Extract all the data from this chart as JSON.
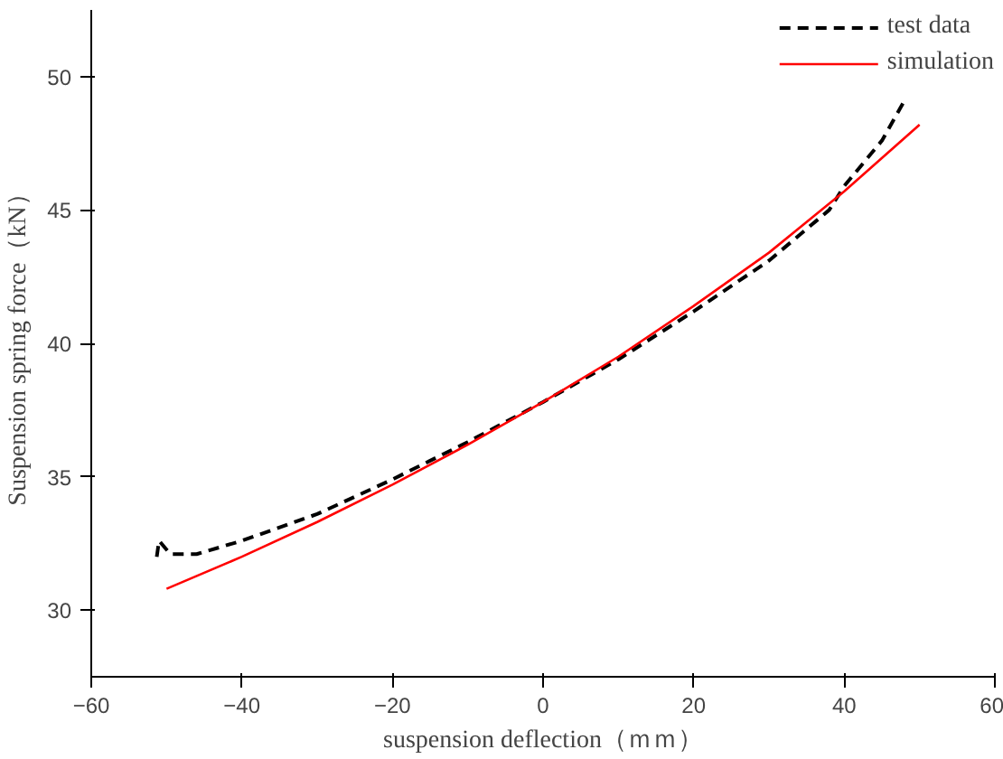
{
  "chart_data": {
    "type": "line",
    "xlabel": "suspension deflection（ｍｍ）",
    "ylabel": "Suspension spring force（kN）",
    "xlim": [
      -60,
      60
    ],
    "xticks": [
      -60,
      -40,
      -20,
      0,
      20,
      40,
      60
    ],
    "ylim": [
      27.5,
      52.5
    ],
    "yticks": [
      30,
      35,
      40,
      45,
      50
    ],
    "grid": false,
    "legend": "top right",
    "series": [
      {
        "name": "test data",
        "color": "#000000",
        "line_style": "dashed",
        "x": [
          -51.3,
          -51.0,
          -49.5,
          -46,
          -40,
          -30,
          -20,
          -10,
          0,
          10,
          20,
          30,
          38,
          40,
          45,
          47.8
        ],
        "values": [
          32.0,
          32.6,
          32.1,
          32.1,
          32.6,
          33.6,
          34.9,
          36.3,
          37.8,
          39.4,
          41.2,
          43.1,
          45.0,
          45.9,
          47.6,
          49.0
        ]
      },
      {
        "name": "simulation",
        "color": "#ff0000",
        "line_style": "solid",
        "x": [
          -50,
          -40,
          -30,
          -20,
          -10,
          0,
          10,
          20,
          30,
          40,
          50
        ],
        "values": [
          30.8,
          32.0,
          33.3,
          34.7,
          36.2,
          37.8,
          39.5,
          41.4,
          43.4,
          45.7,
          48.2
        ]
      }
    ]
  }
}
